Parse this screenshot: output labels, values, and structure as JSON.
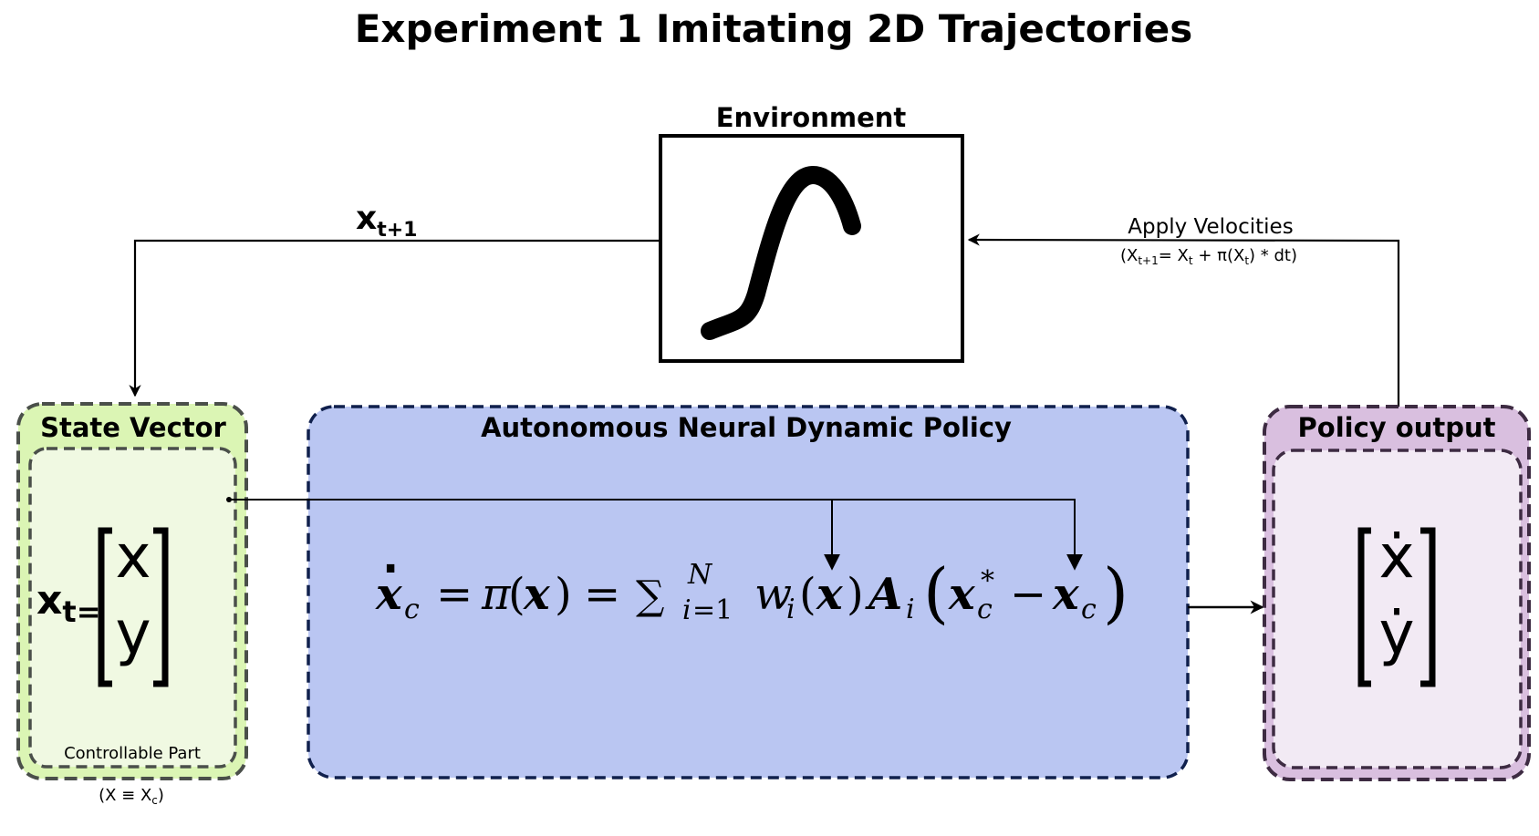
{
  "title": "Experiment 1 Imitating 2D Trajectories",
  "environment": {
    "label": "Environment"
  },
  "feedback": {
    "next_state": "x",
    "next_state_sub": "t+1"
  },
  "apply": {
    "label": "Apply Velocities",
    "formula_open": "(X",
    "formula_sub1": "t+1",
    "formula_mid1": "= X",
    "formula_sub2": "t",
    "formula_mid2": " + π(X",
    "formula_sub3": "t",
    "formula_end": ") * dt)"
  },
  "state_vector": {
    "label": "State Vector",
    "xt": "x",
    "xt_sub": "t=",
    "v1": "x",
    "v2": "y",
    "controllable": "Controllable Part",
    "note_open": "(X ≡ X",
    "note_sub": "c",
    "note_close": ")"
  },
  "policy": {
    "label": "Autonomous Neural Dynamic Policy"
  },
  "output": {
    "label": "Policy output",
    "v1": "ẋ",
    "v2": "ẏ"
  },
  "colors": {
    "state_fill": "#dbf5b4",
    "state_inner": "#f0f9e2",
    "state_border": "#4a4f4a",
    "policy_fill": "#bac6f2",
    "policy_border": "#10204d",
    "output_fill": "#d9bfdf",
    "output_inner": "#f2eaf4",
    "output_border": "#3d2b42"
  }
}
